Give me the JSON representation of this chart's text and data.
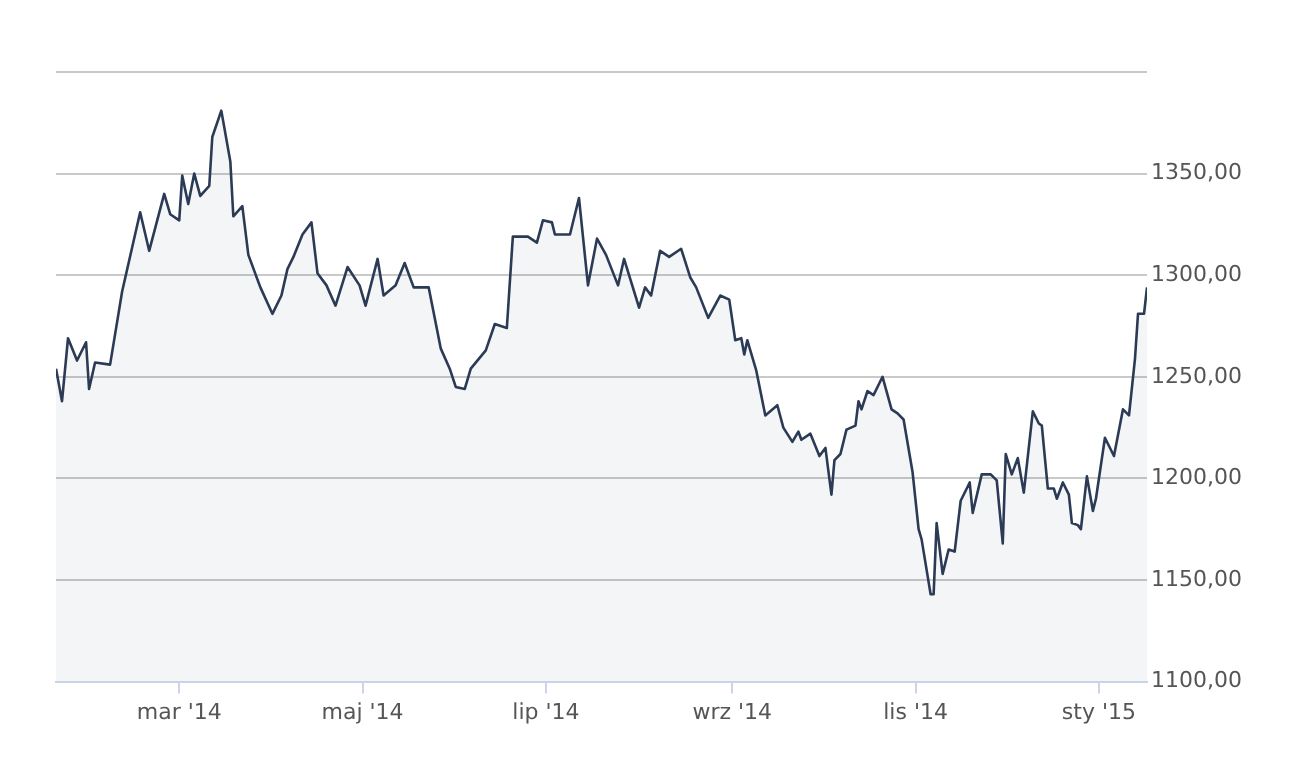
{
  "chart_data": {
    "type": "area",
    "xlim": [
      "2014-01-19",
      "2015-01-17"
    ],
    "xticks": [
      {
        "value": "2014-03-01",
        "label": "mar '14"
      },
      {
        "value": "2014-05-01",
        "label": "maj '14"
      },
      {
        "value": "2014-07-01",
        "label": "lip '14"
      },
      {
        "value": "2014-09-01",
        "label": "wrz '14"
      },
      {
        "value": "2014-11-01",
        "label": "lis '14"
      },
      {
        "value": "2015-01-01",
        "label": "sty '15"
      }
    ],
    "ylim": [
      1100,
      1400
    ],
    "yticks": [
      {
        "value": 1100,
        "label": "1100,00"
      },
      {
        "value": 1150,
        "label": "1150,00"
      },
      {
        "value": 1200,
        "label": "1200,00"
      },
      {
        "value": 1250,
        "label": "1250,00"
      },
      {
        "value": 1300,
        "label": "1300,00"
      },
      {
        "value": 1350,
        "label": "1350,00"
      },
      {
        "value": 1400,
        "label": null
      }
    ],
    "grid": "y",
    "legend": false,
    "marker": "none",
    "line_style": "solid",
    "series": [
      {
        "color": "#2b3a55",
        "x": [
          "2014-01-19",
          "2014-01-21",
          "2014-01-23",
          "2014-01-26",
          "2014-01-29",
          "2014-01-30",
          "2014-02-01",
          "2014-02-06",
          "2014-02-10",
          "2014-02-16",
          "2014-02-19",
          "2014-02-24",
          "2014-02-26",
          "2014-03-01",
          "2014-03-02",
          "2014-03-04",
          "2014-03-06",
          "2014-03-08",
          "2014-03-11",
          "2014-03-12",
          "2014-03-15",
          "2014-03-18",
          "2014-03-19",
          "2014-03-22",
          "2014-03-24",
          "2014-03-28",
          "2014-04-01",
          "2014-04-04",
          "2014-04-06",
          "2014-04-08",
          "2014-04-11",
          "2014-04-14",
          "2014-04-16",
          "2014-04-19",
          "2014-04-22",
          "2014-04-26",
          "2014-04-30",
          "2014-05-02",
          "2014-05-06",
          "2014-05-08",
          "2014-05-12",
          "2014-05-15",
          "2014-05-18",
          "2014-05-23",
          "2014-05-27",
          "2014-05-30",
          "2014-06-01",
          "2014-06-04",
          "2014-06-06",
          "2014-06-11",
          "2014-06-14",
          "2014-06-18",
          "2014-06-20",
          "2014-06-25",
          "2014-06-28",
          "2014-06-30",
          "2014-07-03",
          "2014-07-04",
          "2014-07-09",
          "2014-07-12",
          "2014-07-15",
          "2014-07-18",
          "2014-07-21",
          "2014-07-25",
          "2014-07-27",
          "2014-08-01",
          "2014-08-03",
          "2014-08-05",
          "2014-08-08",
          "2014-08-11",
          "2014-08-15",
          "2014-08-18",
          "2014-08-20",
          "2014-08-24",
          "2014-08-28",
          "2014-08-31",
          "2014-09-02",
          "2014-09-04",
          "2014-09-05",
          "2014-09-06",
          "2014-09-09",
          "2014-09-12",
          "2014-09-16",
          "2014-09-18",
          "2014-09-21",
          "2014-09-23",
          "2014-09-24",
          "2014-09-27",
          "2014-09-30",
          "2014-10-02",
          "2014-10-04",
          "2014-10-05",
          "2014-10-07",
          "2014-10-09",
          "2014-10-12",
          "2014-10-13",
          "2014-10-14",
          "2014-10-16",
          "2014-10-18",
          "2014-10-21",
          "2014-10-24",
          "2014-10-26",
          "2014-10-28",
          "2014-10-31",
          "2014-11-02",
          "2014-11-03",
          "2014-11-06",
          "2014-11-07",
          "2014-11-08",
          "2014-11-10",
          "2014-11-12",
          "2014-11-14",
          "2014-11-16",
          "2014-11-19",
          "2014-11-20",
          "2014-11-23",
          "2014-11-26",
          "2014-11-28",
          "2014-11-30",
          "2014-12-01",
          "2014-12-03",
          "2014-12-05",
          "2014-12-07",
          "2014-12-10",
          "2014-12-12",
          "2014-12-13",
          "2014-12-15",
          "2014-12-17",
          "2014-12-18",
          "2014-12-20",
          "2014-12-22",
          "2014-12-23",
          "2014-12-25",
          "2014-12-26",
          "2014-12-28",
          "2014-12-30",
          "2014-12-31",
          "2015-01-03",
          "2015-01-06",
          "2015-01-09",
          "2015-01-11",
          "2015-01-13",
          "2015-01-14",
          "2015-01-16",
          "2015-01-17"
        ],
        "values": [
          1254,
          1238,
          1269,
          1258,
          1267,
          1244,
          1257,
          1256,
          1292,
          1331,
          1312,
          1340,
          1330,
          1327,
          1349,
          1335,
          1350,
          1339,
          1344,
          1368,
          1381,
          1356,
          1329,
          1334,
          1310,
          1294,
          1281,
          1290,
          1303,
          1309,
          1320,
          1326,
          1301,
          1295,
          1285,
          1304,
          1295,
          1285,
          1308,
          1290,
          1295,
          1306,
          1294,
          1294,
          1264,
          1254,
          1245,
          1244,
          1254,
          1263,
          1276,
          1274,
          1319,
          1319,
          1316,
          1327,
          1326,
          1320,
          1320,
          1338,
          1295,
          1318,
          1310,
          1295,
          1308,
          1284,
          1294,
          1290,
          1312,
          1309,
          1313,
          1299,
          1294,
          1279,
          1290,
          1288,
          1268,
          1269,
          1261,
          1268,
          1253,
          1231,
          1236,
          1225,
          1218,
          1223,
          1219,
          1222,
          1211,
          1215,
          1192,
          1209,
          1212,
          1224,
          1226,
          1238,
          1234,
          1243,
          1241,
          1250,
          1234,
          1232,
          1229,
          1203,
          1175,
          1170,
          1143,
          1143,
          1178,
          1153,
          1165,
          1164,
          1189,
          1198,
          1183,
          1202,
          1202,
          1199,
          1168,
          1212,
          1202,
          1210,
          1193,
          1233,
          1227,
          1226,
          1195,
          1195,
          1190,
          1198,
          1192,
          1178,
          1177,
          1175,
          1201,
          1184,
          1190,
          1220,
          1211,
          1234,
          1231,
          1259,
          1281,
          1281,
          1294
        ]
      }
    ]
  }
}
